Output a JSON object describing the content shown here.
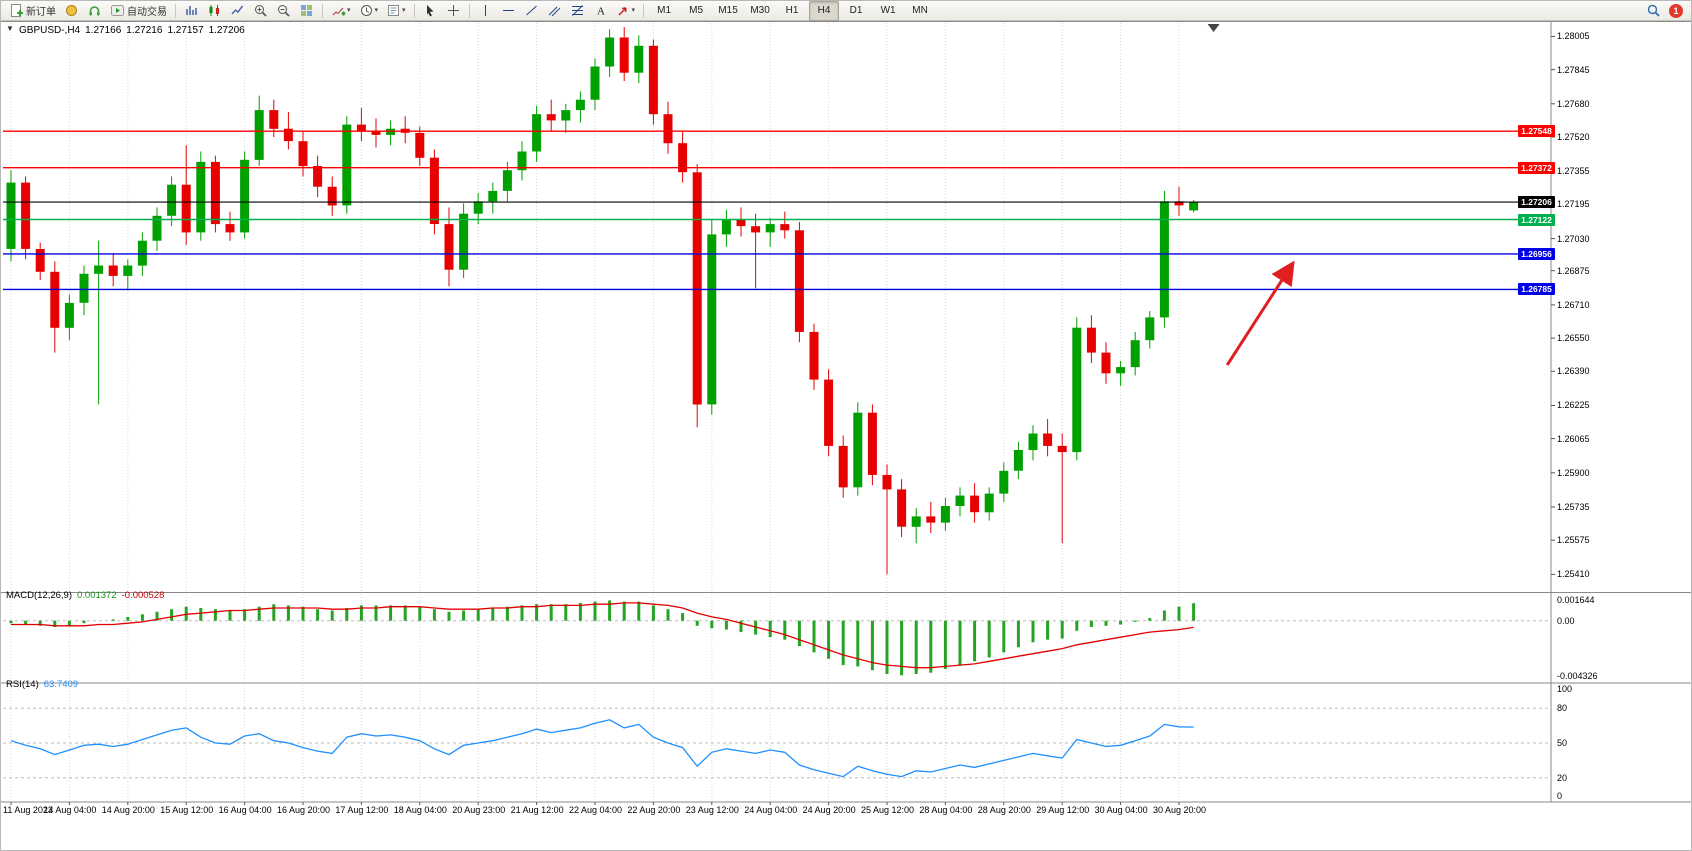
{
  "title": {
    "symbol_period": "GBPUSD-,H4",
    "open": "1.27166",
    "high": "1.27216",
    "low": "1.27157",
    "close": "1.27206"
  },
  "toolbar": {
    "new_order_label": "新订单",
    "auto_trading_label": "自动交易",
    "timeframes": [
      "M1",
      "M5",
      "M15",
      "M30",
      "H1",
      "H4",
      "D1",
      "W1",
      "MN"
    ],
    "active_timeframe": "H4",
    "badge_count": "1"
  },
  "colors": {
    "up": "#00A000",
    "down": "#E60000",
    "macd_hist": "#25A325",
    "macd_signal": "#E00000",
    "rsi_line": "#1E90FF",
    "arrow": "#E02020",
    "bid": "#000000"
  },
  "chart_data": {
    "type": "candlestick",
    "symbol": "GBPUSD-",
    "period": "H4",
    "price_axis": {
      "min": 1.2533,
      "max": 1.2807,
      "labels": [
        "1.28005",
        "1.27845",
        "1.27680",
        "1.27520",
        "1.27355",
        "1.27195",
        "1.27030",
        "1.26875",
        "1.26710",
        "1.26550",
        "1.26390",
        "1.26225",
        "1.26065",
        "1.25900",
        "1.25735",
        "1.25575",
        "1.25410"
      ]
    },
    "time_axis": {
      "label_every_n_candles": 4,
      "labels": [
        "11 Aug 2023",
        "14 Aug 04:00",
        "14 Aug 20:00",
        "15 Aug 12:00",
        "16 Aug 04:00",
        "16 Aug 20:00",
        "17 Aug 12:00",
        "18 Aug 04:00",
        "20 Aug 23:00",
        "21 Aug 12:00",
        "22 Aug 04:00",
        "22 Aug 20:00",
        "23 Aug 12:00",
        "24 Aug 04:00",
        "24 Aug 20:00",
        "25 Aug 12:00",
        "28 Aug 04:00",
        "28 Aug 20:00",
        "29 Aug 12:00",
        "30 Aug 04:00",
        "30 Aug 20:00"
      ]
    },
    "candles": [
      [
        1.2698,
        1.2736,
        1.2692,
        1.273
      ],
      [
        1.273,
        1.2733,
        1.2693,
        1.2698
      ],
      [
        1.2698,
        1.2701,
        1.2683,
        1.2687
      ],
      [
        1.2687,
        1.2692,
        1.2648,
        1.266
      ],
      [
        1.266,
        1.2676,
        1.2654,
        1.2672
      ],
      [
        1.2672,
        1.269,
        1.2666,
        1.2686
      ],
      [
        1.2686,
        1.2702,
        1.2623,
        1.269
      ],
      [
        1.269,
        1.2696,
        1.268,
        1.2685
      ],
      [
        1.2685,
        1.2693,
        1.2678,
        1.269
      ],
      [
        1.269,
        1.2706,
        1.2685,
        1.2702
      ],
      [
        1.2702,
        1.2718,
        1.2697,
        1.2714
      ],
      [
        1.2714,
        1.2733,
        1.2709,
        1.2729
      ],
      [
        1.2729,
        1.2748,
        1.27,
        1.2706
      ],
      [
        1.2706,
        1.2745,
        1.2702,
        1.274
      ],
      [
        1.274,
        1.2743,
        1.2706,
        1.271
      ],
      [
        1.271,
        1.2716,
        1.2702,
        1.2706
      ],
      [
        1.2706,
        1.2745,
        1.2703,
        1.2741
      ],
      [
        1.2741,
        1.2772,
        1.2738,
        1.2765
      ],
      [
        1.2765,
        1.277,
        1.2752,
        1.2756
      ],
      [
        1.2756,
        1.2764,
        1.2746,
        1.275
      ],
      [
        1.275,
        1.2755,
        1.2733,
        1.2738
      ],
      [
        1.2738,
        1.2743,
        1.2723,
        1.2728
      ],
      [
        1.2728,
        1.2733,
        1.2714,
        1.2719
      ],
      [
        1.2719,
        1.2762,
        1.2715,
        1.2758
      ],
      [
        1.2758,
        1.2766,
        1.275,
        1.2755
      ],
      [
        1.2755,
        1.2761,
        1.2747,
        1.2753
      ],
      [
        1.2753,
        1.276,
        1.2748,
        1.2756
      ],
      [
        1.2756,
        1.2762,
        1.2749,
        1.2754
      ],
      [
        1.2754,
        1.2757,
        1.2738,
        1.2742
      ],
      [
        1.2742,
        1.2746,
        1.2705,
        1.271
      ],
      [
        1.271,
        1.2718,
        1.268,
        1.2688
      ],
      [
        1.2688,
        1.272,
        1.2684,
        1.2715
      ],
      [
        1.2715,
        1.2725,
        1.271,
        1.2721
      ],
      [
        1.2721,
        1.273,
        1.2715,
        1.2726
      ],
      [
        1.2726,
        1.274,
        1.2721,
        1.2736
      ],
      [
        1.2736,
        1.275,
        1.2731,
        1.2745
      ],
      [
        1.2745,
        1.2767,
        1.274,
        1.2763
      ],
      [
        1.2763,
        1.277,
        1.2755,
        1.276
      ],
      [
        1.276,
        1.2768,
        1.2754,
        1.2765
      ],
      [
        1.2765,
        1.2774,
        1.2759,
        1.277
      ],
      [
        1.277,
        1.279,
        1.2765,
        1.2786
      ],
      [
        1.2786,
        1.2804,
        1.2781,
        1.28
      ],
      [
        1.28,
        1.2805,
        1.2779,
        1.2783
      ],
      [
        1.2783,
        1.2801,
        1.2778,
        1.2796
      ],
      [
        1.2796,
        1.2799,
        1.2758,
        1.2763
      ],
      [
        1.2763,
        1.2769,
        1.2744,
        1.2749
      ],
      [
        1.2749,
        1.2755,
        1.273,
        1.2735
      ],
      [
        1.2735,
        1.2739,
        1.2612,
        1.2623
      ],
      [
        1.2623,
        1.2712,
        1.2618,
        1.2705
      ],
      [
        1.2705,
        1.2717,
        1.2699,
        1.2712
      ],
      [
        1.2712,
        1.2718,
        1.2704,
        1.2709
      ],
      [
        1.2709,
        1.2715,
        1.2679,
        1.2706
      ],
      [
        1.2706,
        1.2713,
        1.2699,
        1.271
      ],
      [
        1.271,
        1.2716,
        1.2703,
        1.2707
      ],
      [
        1.2707,
        1.2711,
        1.2653,
        1.2658
      ],
      [
        1.2658,
        1.2662,
        1.263,
        1.2635
      ],
      [
        1.2635,
        1.264,
        1.2598,
        1.2603
      ],
      [
        1.2603,
        1.2608,
        1.2578,
        1.2583
      ],
      [
        1.2583,
        1.2624,
        1.2579,
        1.2619
      ],
      [
        1.2619,
        1.2623,
        1.2584,
        1.2589
      ],
      [
        1.2589,
        1.2594,
        1.2541,
        1.2582
      ],
      [
        1.2582,
        1.2587,
        1.2559,
        1.2564
      ],
      [
        1.2564,
        1.2573,
        1.2556,
        1.2569
      ],
      [
        1.2569,
        1.2576,
        1.2561,
        1.2566
      ],
      [
        1.2566,
        1.2578,
        1.2562,
        1.2574
      ],
      [
        1.2574,
        1.2583,
        1.2569,
        1.2579
      ],
      [
        1.2579,
        1.2585,
        1.2566,
        1.2571
      ],
      [
        1.2571,
        1.2583,
        1.2567,
        1.258
      ],
      [
        1.258,
        1.2595,
        1.2576,
        1.2591
      ],
      [
        1.2591,
        1.2605,
        1.2587,
        1.2601
      ],
      [
        1.2601,
        1.2613,
        1.2596,
        1.2609
      ],
      [
        1.2609,
        1.2616,
        1.2598,
        1.2603
      ],
      [
        1.2603,
        1.2609,
        1.2556,
        1.26
      ],
      [
        1.26,
        1.2665,
        1.2596,
        1.266
      ],
      [
        1.266,
        1.2666,
        1.2643,
        1.2648
      ],
      [
        1.2648,
        1.2653,
        1.2633,
        1.2638
      ],
      [
        1.2638,
        1.2644,
        1.2632,
        1.2641
      ],
      [
        1.2641,
        1.2658,
        1.2637,
        1.2654
      ],
      [
        1.2654,
        1.2668,
        1.265,
        1.2665
      ],
      [
        1.2665,
        1.2726,
        1.266,
        1.2721
      ],
      [
        1.2721,
        1.2728,
        1.2714,
        1.2719
      ],
      [
        1.27166,
        1.27216,
        1.27157,
        1.27206
      ]
    ],
    "hlines": [
      {
        "price": 1.27548,
        "label": "1.27548",
        "color": "#FF0000"
      },
      {
        "price": 1.27372,
        "label": "1.27372",
        "color": "#FF0000"
      },
      {
        "price": 1.27122,
        "label": "1.27122",
        "color": "#00B050"
      },
      {
        "price": 1.26956,
        "label": "1.26956",
        "color": "#0000E6"
      },
      {
        "price": 1.26785,
        "label": "1.26785",
        "color": "#0000E6"
      }
    ],
    "bid_line": {
      "price": 1.27206,
      "label": "1.27206",
      "color": "#000000"
    },
    "arrow": {
      "from": {
        "t": 83.3,
        "price": 1.2642
      },
      "to": {
        "t": 87.7,
        "price": 1.269
      }
    },
    "macd": {
      "label": "MACD(12,26,9)",
      "main_value": "0.001372",
      "signal_value": "-0.000528",
      "range": [
        -0.00475,
        0.0021
      ],
      "axis_labels": [
        {
          "text": "0.001644",
          "value": 0.001644
        },
        {
          "text": "0.00",
          "value": 0
        },
        {
          "text": "-0.004326",
          "value": -0.004326
        }
      ],
      "hist": [
        -0.0002,
        -0.0003,
        -0.0004,
        -0.0005,
        -0.0004,
        -0.0002,
        0.0,
        0.0001,
        0.0003,
        0.0005,
        0.0007,
        0.0009,
        0.0011,
        0.001,
        0.0009,
        0.0008,
        0.0009,
        0.0011,
        0.0013,
        0.0012,
        0.0011,
        0.0009,
        0.0008,
        0.001,
        0.0012,
        0.0012,
        0.0012,
        0.0012,
        0.0011,
        0.0009,
        0.0007,
        0.0008,
        0.0009,
        0.001,
        0.0011,
        0.0012,
        0.0013,
        0.0013,
        0.0013,
        0.0014,
        0.0015,
        0.0016,
        0.0015,
        0.0015,
        0.0012,
        0.0009,
        0.0006,
        -0.0004,
        -0.0006,
        -0.0007,
        -0.0009,
        -0.0011,
        -0.0013,
        -0.0015,
        -0.002,
        -0.0025,
        -0.003,
        -0.0035,
        -0.0036,
        -0.0039,
        -0.0042,
        -0.0043,
        -0.0042,
        -0.0041,
        -0.0038,
        -0.0035,
        -0.0032,
        -0.0029,
        -0.0025,
        -0.0021,
        -0.0017,
        -0.0015,
        -0.0014,
        -0.0008,
        -0.0005,
        -0.0004,
        -0.0003,
        -0.0001,
        0.0002,
        0.0008,
        0.0011,
        0.001372
      ],
      "signal": [
        -0.0003,
        -0.0003,
        -0.0003,
        -0.0004,
        -0.0004,
        -0.0004,
        -0.0003,
        -0.0003,
        -0.0002,
        -0.0001,
        0.0001,
        0.0003,
        0.0005,
        0.0006,
        0.0007,
        0.0008,
        0.0008,
        0.0009,
        0.001,
        0.001,
        0.001,
        0.001,
        0.0009,
        0.0009,
        0.001,
        0.001,
        0.0011,
        0.0011,
        0.0011,
        0.001,
        0.0009,
        0.0009,
        0.0009,
        0.001,
        0.001,
        0.0011,
        0.0011,
        0.0012,
        0.0012,
        0.0012,
        0.0013,
        0.0013,
        0.0014,
        0.0014,
        0.0013,
        0.0012,
        0.001,
        0.0006,
        0.0003,
        0.0001,
        -0.0002,
        -0.0005,
        -0.0008,
        -0.0011,
        -0.0015,
        -0.0019,
        -0.0023,
        -0.0027,
        -0.003,
        -0.0033,
        -0.0035,
        -0.0036,
        -0.0037,
        -0.0037,
        -0.0036,
        -0.0035,
        -0.0034,
        -0.0032,
        -0.003,
        -0.0028,
        -0.0026,
        -0.0024,
        -0.0022,
        -0.0019,
        -0.0017,
        -0.0015,
        -0.0013,
        -0.0011,
        -0.0009,
        -0.0008,
        -0.0007,
        -0.000528
      ]
    },
    "rsi": {
      "label": "RSI(14)",
      "value_label": "63.7409",
      "range": [
        0,
        100
      ],
      "levels": [
        80,
        50,
        20
      ],
      "axis_labels": [
        {
          "text": "100",
          "value": 100
        },
        {
          "text": "80",
          "value": 80
        },
        {
          "text": "50",
          "value": 50
        },
        {
          "text": "20",
          "value": 20
        },
        {
          "text": "0",
          "value": 0
        }
      ],
      "values": [
        52,
        48,
        45,
        40,
        44,
        48,
        49,
        47,
        49,
        53,
        57,
        61,
        63,
        55,
        50,
        49,
        56,
        58,
        52,
        50,
        46,
        43,
        41,
        55,
        58,
        56,
        57,
        55,
        52,
        45,
        40,
        48,
        50,
        52,
        55,
        58,
        62,
        59,
        61,
        63,
        67,
        70,
        63,
        66,
        55,
        50,
        46,
        30,
        42,
        45,
        43,
        41,
        44,
        42,
        31,
        27,
        24,
        21,
        30,
        26,
        23,
        21,
        26,
        25,
        28,
        31,
        29,
        32,
        35,
        38,
        41,
        39,
        37,
        53,
        50,
        47,
        48,
        52,
        56,
        66,
        64,
        63.74
      ]
    }
  }
}
